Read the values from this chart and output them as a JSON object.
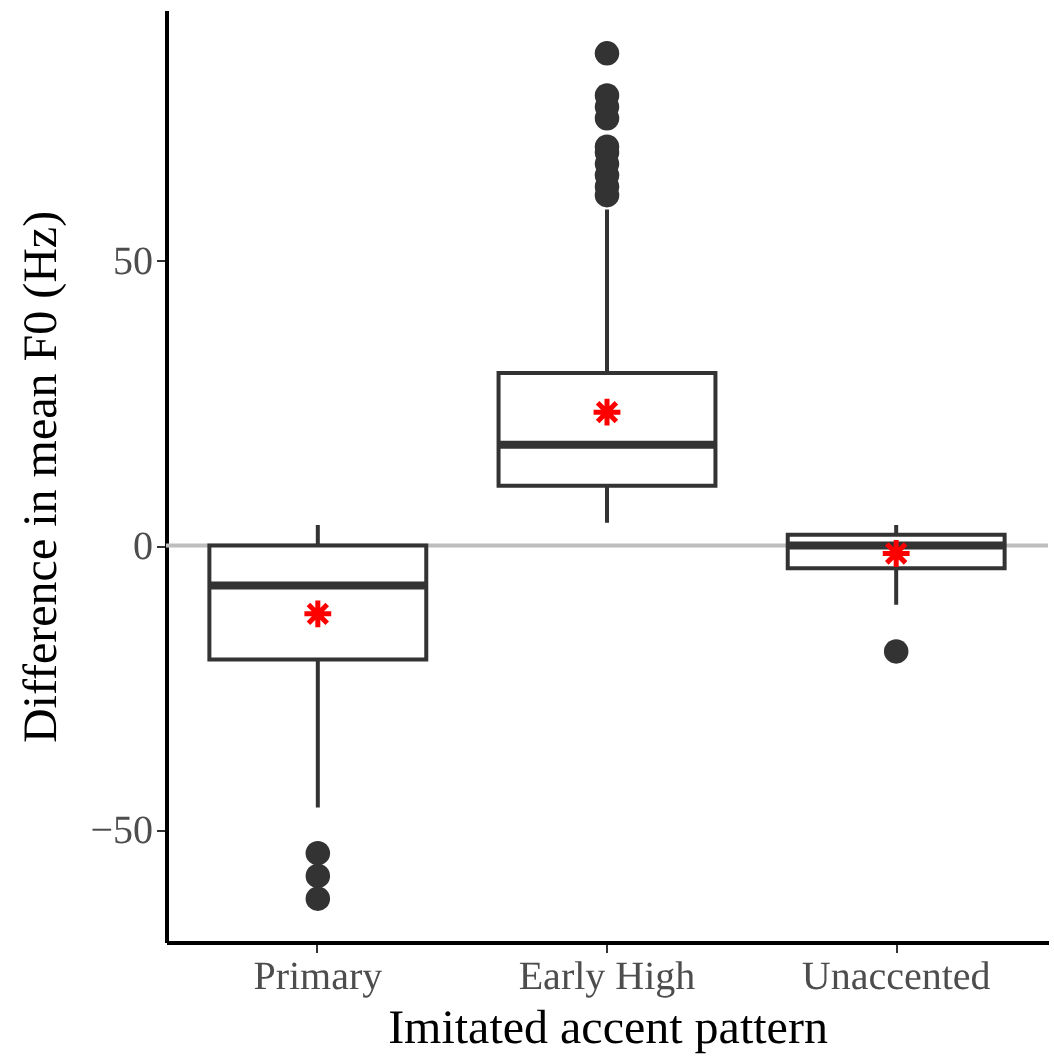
{
  "chart_data": {
    "type": "box",
    "xlabel": "Imitated accent pattern",
    "ylabel": "Difference in mean F0 (Hz)",
    "categories": [
      "Primary",
      "Early High",
      "Unaccented"
    ],
    "boxes": [
      {
        "low": -46,
        "q1": -20,
        "median": -7,
        "q3": 0,
        "high": 3.6,
        "outliers": [
          -54,
          -58,
          -62
        ]
      },
      {
        "low": 4,
        "q1": 10.5,
        "median": 17.7,
        "q3": 30.3,
        "high": 59,
        "outliers": [
          61.5,
          63,
          65,
          67,
          69,
          70,
          75,
          77,
          79,
          86.4
        ]
      },
      {
        "low": -10.4,
        "q1": -4,
        "median": 0,
        "q3": 1.9,
        "high": 3.6,
        "outliers": [
          -18.6
        ]
      }
    ],
    "series": [
      {
        "type": "scatter",
        "x": [
          "Primary",
          "Early High",
          "Unaccented"
        ],
        "values": [
          -12,
          23.4,
          -1.4
        ],
        "color": "#ff0000",
        "marker": "cross"
      }
    ],
    "ylim": [
      -69.6,
      94
    ],
    "yticks": [
      -50,
      0,
      50
    ],
    "ref_lines": [
      {
        "axis": "y",
        "value": 0,
        "color": "#bebebe"
      }
    ],
    "grid": false
  }
}
